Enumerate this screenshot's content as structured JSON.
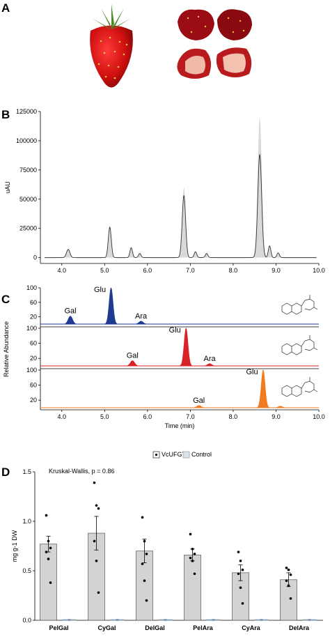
{
  "panels": {
    "a": "A",
    "b": "B",
    "c": "C",
    "d": "D"
  },
  "colors": {
    "gray_fill": "#d9d9d9",
    "trace": "#333333",
    "blue": "#1f3a93",
    "red": "#d8232a",
    "orange": "#f07c22",
    "bar": "#d3d3d3"
  },
  "photos": {
    "left": "strawberry-whole-icon",
    "right": "strawberry-halves-icon"
  },
  "chart_data": [
    {
      "type": "line",
      "xlabel": "",
      "ylabel": "uAU",
      "xlim": [
        3.5,
        10.0
      ],
      "ylim": [
        -5000,
        125000
      ],
      "xticks": [
        "4.0",
        "5.0",
        "6.0",
        "7.0",
        "8.0",
        "9.0",
        "10.0"
      ],
      "yticks": [
        "0",
        "25000",
        "50000",
        "75000",
        "100000",
        "125000"
      ],
      "peaks": [
        {
          "x": 4.15,
          "y": 7000,
          "w": 0.04
        },
        {
          "x": 5.12,
          "y": 26000,
          "w": 0.035
        },
        {
          "x": 5.62,
          "y": 8500,
          "w": 0.03
        },
        {
          "x": 5.82,
          "y": 3500,
          "w": 0.03
        },
        {
          "x": 6.85,
          "y": 53000,
          "w": 0.04
        },
        {
          "x": 7.12,
          "y": 5000,
          "w": 0.03
        },
        {
          "x": 7.38,
          "y": 3500,
          "w": 0.03
        },
        {
          "x": 8.62,
          "y": 88000,
          "w": 0.045
        },
        {
          "x": 8.85,
          "y": 10000,
          "w": 0.03
        },
        {
          "x": 9.05,
          "y": 4000,
          "w": 0.03
        }
      ],
      "gray_envelope_peaks": [
        {
          "x": 6.85,
          "y": 60000
        },
        {
          "x": 8.62,
          "y": 120000
        }
      ]
    },
    {
      "type": "area",
      "xlabel": "Time (min)",
      "ylabel": "Relative Abundance",
      "xlim": [
        3.5,
        10.0
      ],
      "xticks": [
        "4.0",
        "5.0",
        "6.0",
        "7.0",
        "8.0",
        "9.0",
        "10.0"
      ],
      "yticks": [
        "100",
        "60",
        "20"
      ],
      "traces": [
        {
          "color": "blue",
          "peaks": [
            {
              "label": "Gal",
              "x": 4.2,
              "y": 22
            },
            {
              "label": "Glu",
              "x": 5.15,
              "y": 100
            },
            {
              "label": "Ara",
              "x": 5.85,
              "y": 8
            }
          ]
        },
        {
          "color": "red",
          "peaks": [
            {
              "label": "Gal",
              "x": 5.65,
              "y": 14
            },
            {
              "label": "Glu",
              "x": 6.9,
              "y": 100
            },
            {
              "label": "Ara",
              "x": 7.45,
              "y": 6
            }
          ]
        },
        {
          "color": "orange",
          "peaks": [
            {
              "label": "Gal",
              "x": 7.2,
              "y": 6
            },
            {
              "label": "Glu",
              "x": 8.7,
              "y": 100
            },
            {
              "label": "",
              "x": 9.1,
              "y": 4
            }
          ]
        }
      ]
    },
    {
      "type": "bar",
      "legend": [
        "VcUFGT2",
        "Control"
      ],
      "annotation": "Kruskal-Wallis, p = 0.86",
      "ylabel": "mg g-1 DW",
      "ylim": [
        0,
        1.5
      ],
      "yticks": [
        "0.0",
        "0.5",
        "1.0",
        "1.5"
      ],
      "categories": [
        "PelGal",
        "CyGal",
        "DelGal",
        "PelAra",
        "CyAra",
        "DelAra"
      ],
      "series": [
        {
          "name": "VcUFGT2",
          "values": [
            0.77,
            0.88,
            0.7,
            0.66,
            0.48,
            0.41
          ],
          "se": [
            0.08,
            0.17,
            0.12,
            0.06,
            0.08,
            0.07
          ],
          "points": [
            [
              1.06,
              0.8,
              0.73,
              0.69,
              0.62,
              0.38
            ],
            [
              1.39,
              1.16,
              1.13,
              0.8,
              0.6,
              0.28
            ],
            [
              1.04,
              0.8,
              0.67,
              0.57,
              0.4,
              0.2
            ],
            [
              0.87,
              0.72,
              0.67,
              0.63,
              0.6,
              0.47
            ],
            [
              0.69,
              0.6,
              0.51,
              0.47,
              0.33,
              0.17
            ],
            [
              0.53,
              0.51,
              0.46,
              0.4,
              0.35,
              0.22
            ]
          ]
        },
        {
          "name": "Control",
          "values": [
            0,
            0,
            0,
            0,
            0,
            0
          ]
        }
      ]
    }
  ]
}
